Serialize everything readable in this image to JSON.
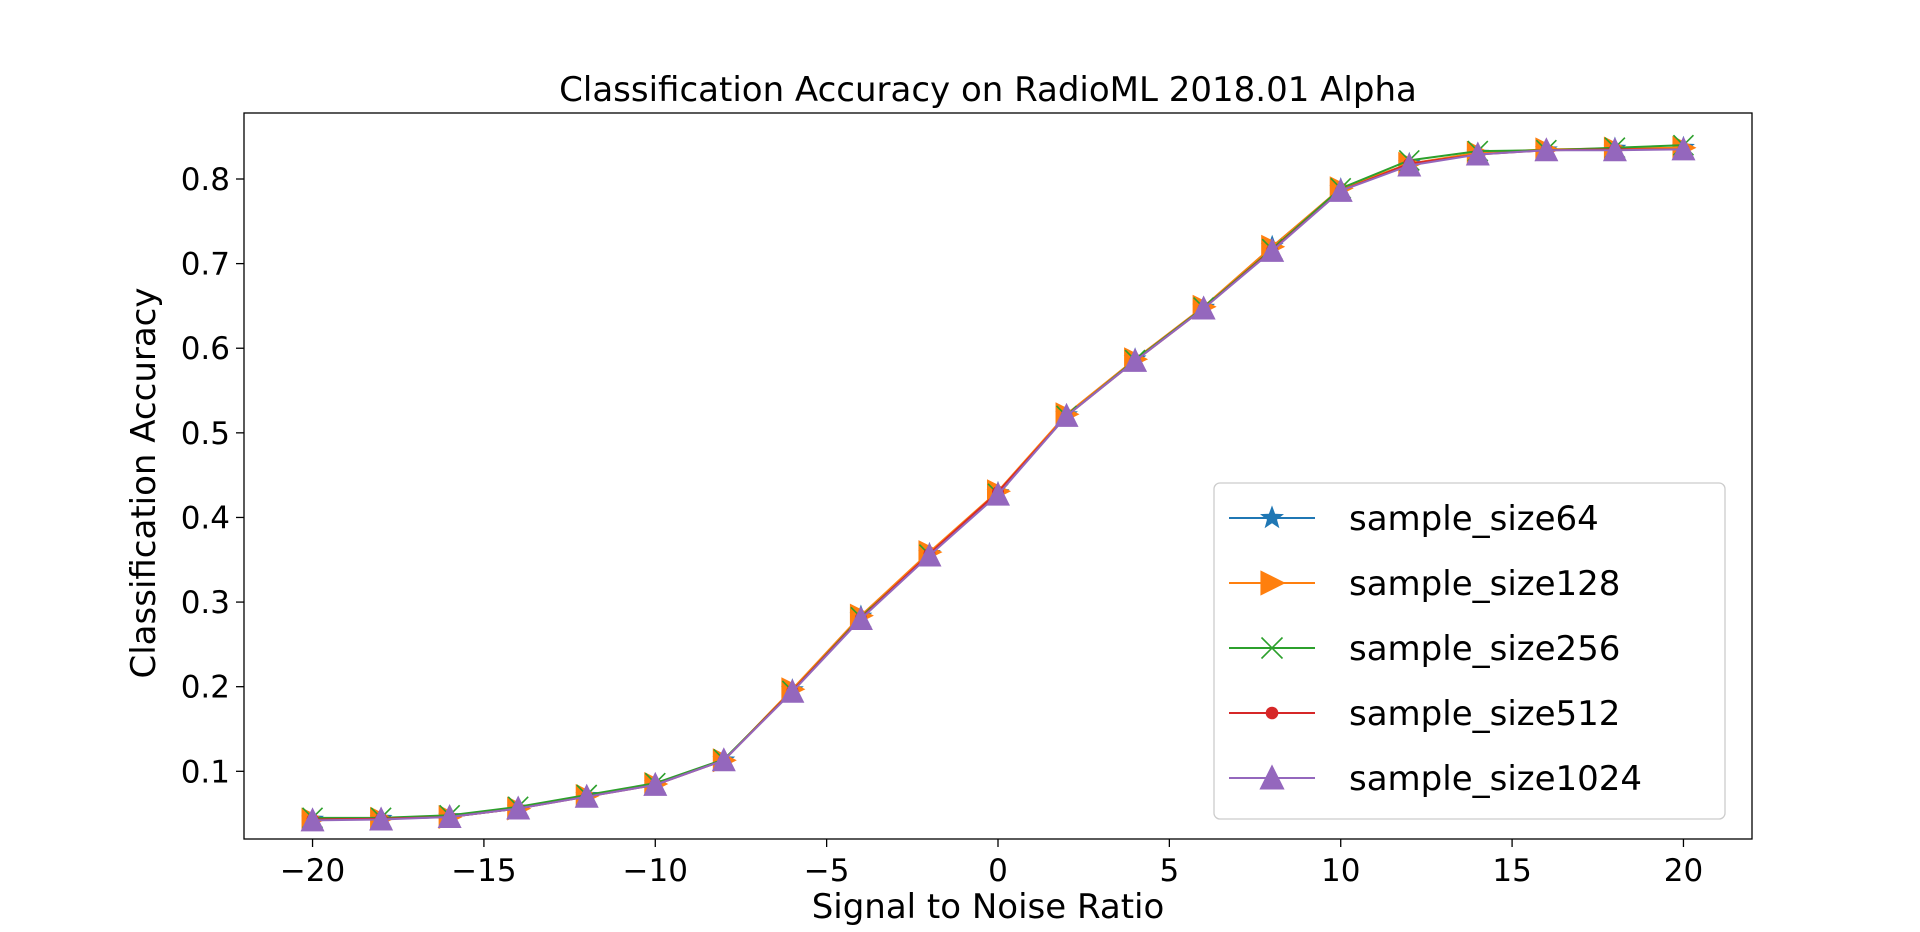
{
  "chart_data": {
    "type": "line",
    "title": "Classification Accuracy on RadioML 2018.01 Alpha",
    "xlabel": "Signal to Noise Ratio",
    "ylabel": "Classification Accuracy",
    "xlim": [
      -22,
      22
    ],
    "ylim": [
      0.02,
      0.878
    ],
    "xticks": [
      -20,
      -15,
      -10,
      -5,
      0,
      5,
      10,
      15,
      20
    ],
    "xtick_labels": [
      "−20",
      "−15",
      "−10",
      "−5",
      "0",
      "5",
      "10",
      "15",
      "20"
    ],
    "yticks": [
      0.1,
      0.2,
      0.3,
      0.4,
      0.5,
      0.6,
      0.7,
      0.8
    ],
    "ytick_labels": [
      "0.1",
      "0.2",
      "0.3",
      "0.4",
      "0.5",
      "0.6",
      "0.7",
      "0.8"
    ],
    "grid": false,
    "legend_position": "lower right",
    "x": [
      -20,
      -18,
      -16,
      -14,
      -12,
      -10,
      -8,
      -6,
      -4,
      -2,
      0,
      2,
      4,
      6,
      8,
      10,
      12,
      14,
      16,
      18,
      20
    ],
    "series": [
      {
        "name": "sample_size64",
        "color": "#1f77b4",
        "marker": "star",
        "values": [
          0.043,
          0.044,
          0.046,
          0.056,
          0.071,
          0.085,
          0.113,
          0.196,
          0.283,
          0.357,
          0.429,
          0.521,
          0.587,
          0.648,
          0.72,
          0.788,
          0.818,
          0.83,
          0.834,
          0.836,
          0.837
        ]
      },
      {
        "name": "sample_size128",
        "color": "#ff7f0e",
        "marker": "triangle-right",
        "values": [
          0.043,
          0.044,
          0.046,
          0.056,
          0.071,
          0.085,
          0.113,
          0.197,
          0.284,
          0.359,
          0.431,
          0.522,
          0.587,
          0.649,
          0.72,
          0.789,
          0.818,
          0.831,
          0.835,
          0.836,
          0.837
        ]
      },
      {
        "name": "sample_size256",
        "color": "#2ca02c",
        "marker": "x",
        "values": [
          0.045,
          0.045,
          0.048,
          0.058,
          0.072,
          0.086,
          0.114,
          0.195,
          0.282,
          0.356,
          0.428,
          0.52,
          0.586,
          0.648,
          0.717,
          0.789,
          0.822,
          0.833,
          0.834,
          0.837,
          0.84
        ]
      },
      {
        "name": "sample_size512",
        "color": "#d62728",
        "marker": "circle",
        "values": [
          0.043,
          0.044,
          0.046,
          0.056,
          0.07,
          0.084,
          0.113,
          0.195,
          0.281,
          0.357,
          0.43,
          0.52,
          0.585,
          0.647,
          0.716,
          0.786,
          0.818,
          0.829,
          0.834,
          0.835,
          0.835
        ]
      },
      {
        "name": "sample_size1024",
        "color": "#9467bd",
        "marker": "triangle-up",
        "values": [
          0.042,
          0.043,
          0.046,
          0.056,
          0.07,
          0.084,
          0.113,
          0.194,
          0.28,
          0.355,
          0.427,
          0.52,
          0.585,
          0.647,
          0.715,
          0.786,
          0.816,
          0.829,
          0.834,
          0.834,
          0.835
        ]
      }
    ]
  }
}
